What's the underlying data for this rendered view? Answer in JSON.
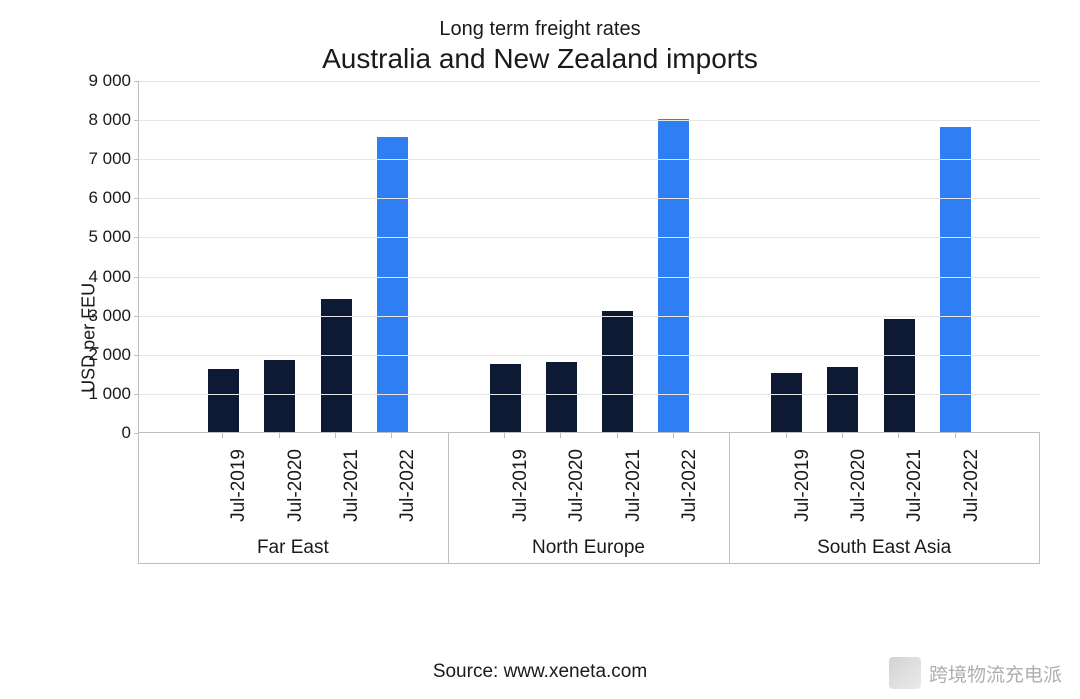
{
  "chart": {
    "type": "bar",
    "supertitle": "Long term freight rates",
    "title": "Australia and New Zealand imports",
    "supertitle_fontsize": 20,
    "title_fontsize": 28,
    "ylabel": "USD per FEU",
    "ylabel_fontsize": 18,
    "xlabel_fontsize": 19,
    "group_label_fontsize": 19,
    "background_color": "#ffffff",
    "axis_color": "#bfbfbf",
    "grid_color": "#e6e6e6",
    "text_color": "#1a1a1a",
    "ylim": [
      0,
      9000
    ],
    "ytick_step": 1000,
    "ytick_labels": [
      "0",
      "1 000",
      "2 000",
      "3 000",
      "4 000",
      "5 000",
      "6 000",
      "7 000",
      "8 000",
      "9 000"
    ],
    "thousands_separator": "space",
    "bar_width": 0.55,
    "colors": {
      "dark": "#0e1a33",
      "highlight": "#2f7ff2"
    },
    "groups": [
      {
        "name": "Far East",
        "bars": [
          {
            "label": "Jul-2019",
            "value": 1600,
            "color": "#0e1a33"
          },
          {
            "label": "Jul-2020",
            "value": 1850,
            "color": "#0e1a33"
          },
          {
            "label": "Jul-2021",
            "value": 3400,
            "color": "#0e1a33"
          },
          {
            "label": "Jul-2022",
            "value": 7550,
            "color": "#2f7ff2"
          }
        ]
      },
      {
        "name": "North Europe",
        "bars": [
          {
            "label": "Jul-2019",
            "value": 1750,
            "color": "#0e1a33"
          },
          {
            "label": "Jul-2020",
            "value": 1800,
            "color": "#0e1a33"
          },
          {
            "label": "Jul-2021",
            "value": 3100,
            "color": "#0e1a33"
          },
          {
            "label": "Jul-2022",
            "value": 8000,
            "color": "#2f7ff2"
          }
        ]
      },
      {
        "name": "South East Asia",
        "bars": [
          {
            "label": "Jul-2019",
            "value": 1500,
            "color": "#0e1a33"
          },
          {
            "label": "Jul-2020",
            "value": 1650,
            "color": "#0e1a33"
          },
          {
            "label": "Jul-2021",
            "value": 2900,
            "color": "#0e1a33"
          },
          {
            "label": "Jul-2022",
            "value": 7800,
            "color": "#2f7ff2"
          }
        ]
      }
    ],
    "source_text": "Source: www.xeneta.com",
    "source_fontsize": 19
  },
  "watermark": {
    "text": "跨境物流充电派",
    "color": "#6d6d6d",
    "icon_placeholder": true
  }
}
